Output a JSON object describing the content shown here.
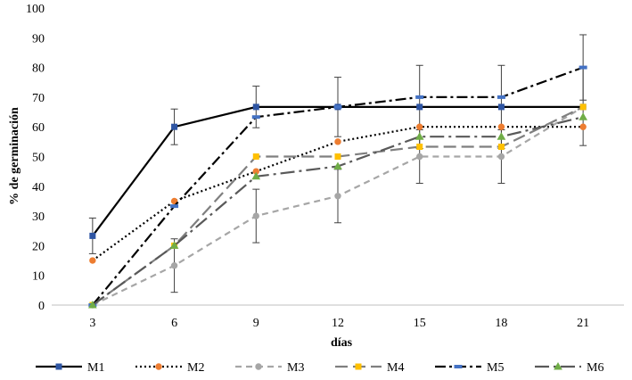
{
  "chart_data": {
    "type": "line",
    "title": "",
    "xlabel": "días",
    "ylabel": "% de germinación",
    "x": [
      3,
      6,
      9,
      12,
      15,
      18,
      21
    ],
    "ylim": [
      0,
      100
    ],
    "yticks": [
      0,
      10,
      20,
      30,
      40,
      50,
      60,
      70,
      80,
      90,
      100
    ],
    "legend_position": "bottom",
    "series": [
      {
        "name": "M1",
        "values": [
          23.3,
          60,
          66.7,
          66.7,
          66.7,
          66.7,
          66.7
        ],
        "errors": [
          6,
          6,
          7,
          10,
          14,
          14,
          0
        ],
        "color": "#000000",
        "marker_color": "#2e55a3",
        "marker": "square",
        "dash": "solid"
      },
      {
        "name": "M2",
        "values": [
          15,
          35,
          45,
          55,
          60,
          60,
          60
        ],
        "errors": [
          0,
          0,
          0,
          0,
          0,
          0,
          0
        ],
        "color": "#000000",
        "marker_color": "#ed7d31",
        "marker": "circle",
        "dash": "dot"
      },
      {
        "name": "M3",
        "values": [
          0,
          13.3,
          30,
          36.7,
          50,
          50,
          66.7
        ],
        "errors": [
          0,
          9,
          9,
          9,
          9,
          9,
          13
        ],
        "color": "#a6a6a6",
        "marker_color": "#a6a6a6",
        "marker": "circle",
        "dash": "dash"
      },
      {
        "name": "M4",
        "values": [
          0,
          20,
          50,
          50,
          53.3,
          53.3,
          66.7
        ],
        "errors": [
          0,
          0,
          0,
          0,
          0,
          0,
          0
        ],
        "color": "#7f7f7f",
        "marker_color": "#ffc000",
        "marker": "square",
        "dash": "longdash"
      },
      {
        "name": "M5",
        "values": [
          0,
          33.3,
          63.3,
          66.7,
          70,
          70,
          80
        ],
        "errors": [
          0,
          0,
          0,
          0,
          0,
          0,
          11
        ],
        "color": "#000000",
        "marker_color": "#4472c4",
        "marker": "dash",
        "dash": "dashdot"
      },
      {
        "name": "M6",
        "values": [
          0,
          20,
          43.3,
          46.7,
          56.7,
          56.7,
          63.3
        ],
        "errors": [
          0,
          0,
          0,
          0,
          0,
          0,
          0
        ],
        "color": "#595959",
        "marker_color": "#70ad47",
        "marker": "triangle",
        "dash": "longdashdot"
      }
    ]
  }
}
